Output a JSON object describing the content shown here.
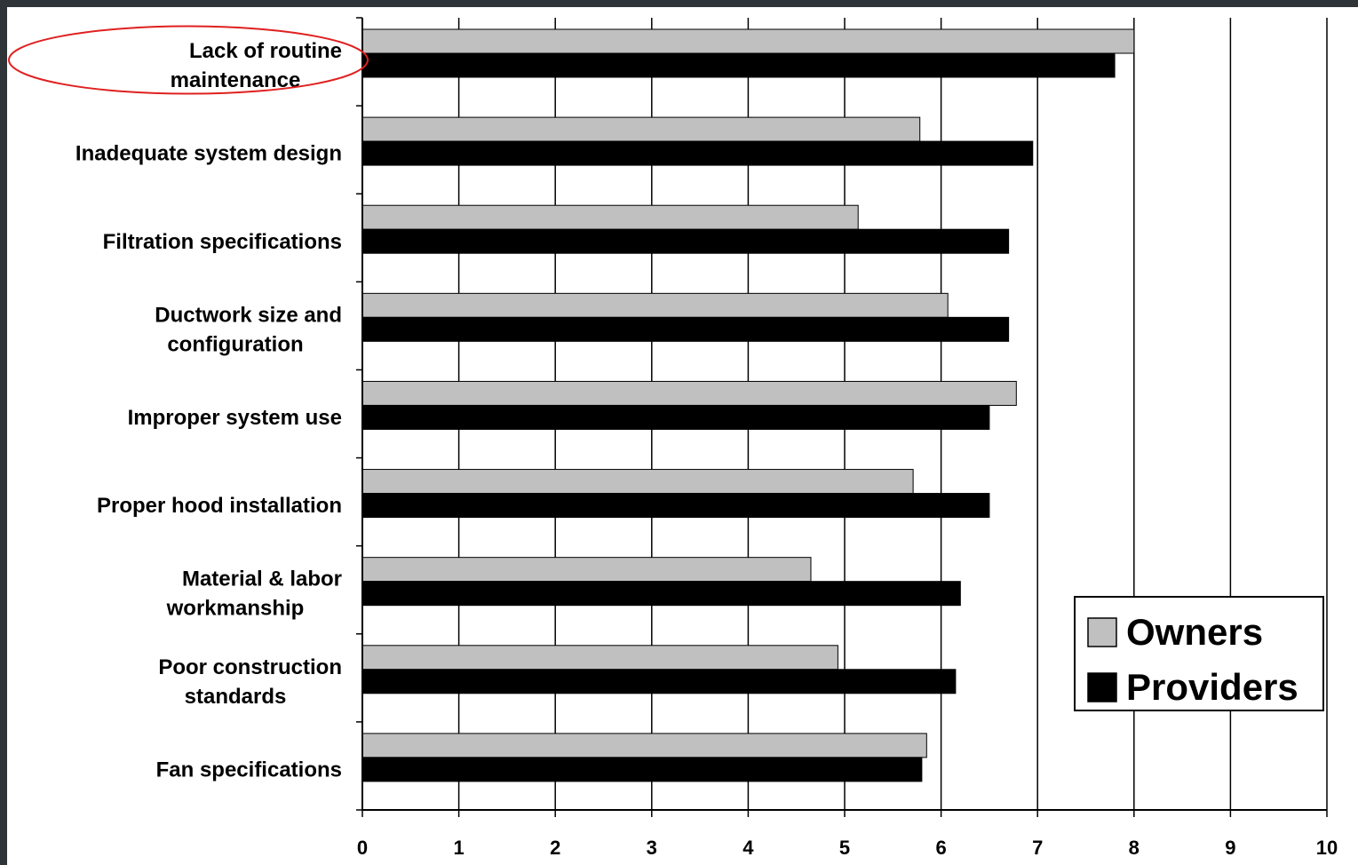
{
  "chart_data": {
    "type": "bar",
    "orientation": "horizontal",
    "title": "",
    "xlabel": "",
    "ylabel": "",
    "xlim": [
      0,
      10
    ],
    "x_ticks": [
      "0",
      "1",
      "2",
      "3",
      "4",
      "5",
      "6",
      "7",
      "8",
      "9",
      "10"
    ],
    "grid": "vertical",
    "legend_position": "bottom-right",
    "categories": [
      "Lack of routine maintenance",
      "Inadequate system design",
      "Filtration specifications",
      "Ductwork size and configuration",
      "Improper system use",
      "Proper hood installation",
      "Material & labor workmanship",
      "Poor construction standards",
      "Fan specifications"
    ],
    "category_label_lines": [
      [
        "Lack of routine",
        "maintenance"
      ],
      [
        "Inadequate system design"
      ],
      [
        "Filtration specifications"
      ],
      [
        "Ductwork size and",
        "configuration"
      ],
      [
        "Improper system use"
      ],
      [
        "Proper hood installation"
      ],
      [
        "Material & labor",
        "workmanship"
      ],
      [
        "Poor construction",
        "standards"
      ],
      [
        "Fan specifications"
      ]
    ],
    "highlighted_category": "Lack of routine maintenance",
    "series": [
      {
        "name": "Owners",
        "color": "#c0c0c0",
        "values": [
          8.0,
          5.78,
          5.14,
          6.07,
          6.78,
          5.71,
          4.65,
          4.93,
          5.85
        ]
      },
      {
        "name": "Providers",
        "color": "#000000",
        "values": [
          7.8,
          6.95,
          6.7,
          6.7,
          6.5,
          6.5,
          6.2,
          6.15,
          5.8
        ]
      }
    ],
    "colors": {
      "highlight_ellipse": "#e02020",
      "background": "#2f3438",
      "plot_area": "#ffffff"
    }
  }
}
